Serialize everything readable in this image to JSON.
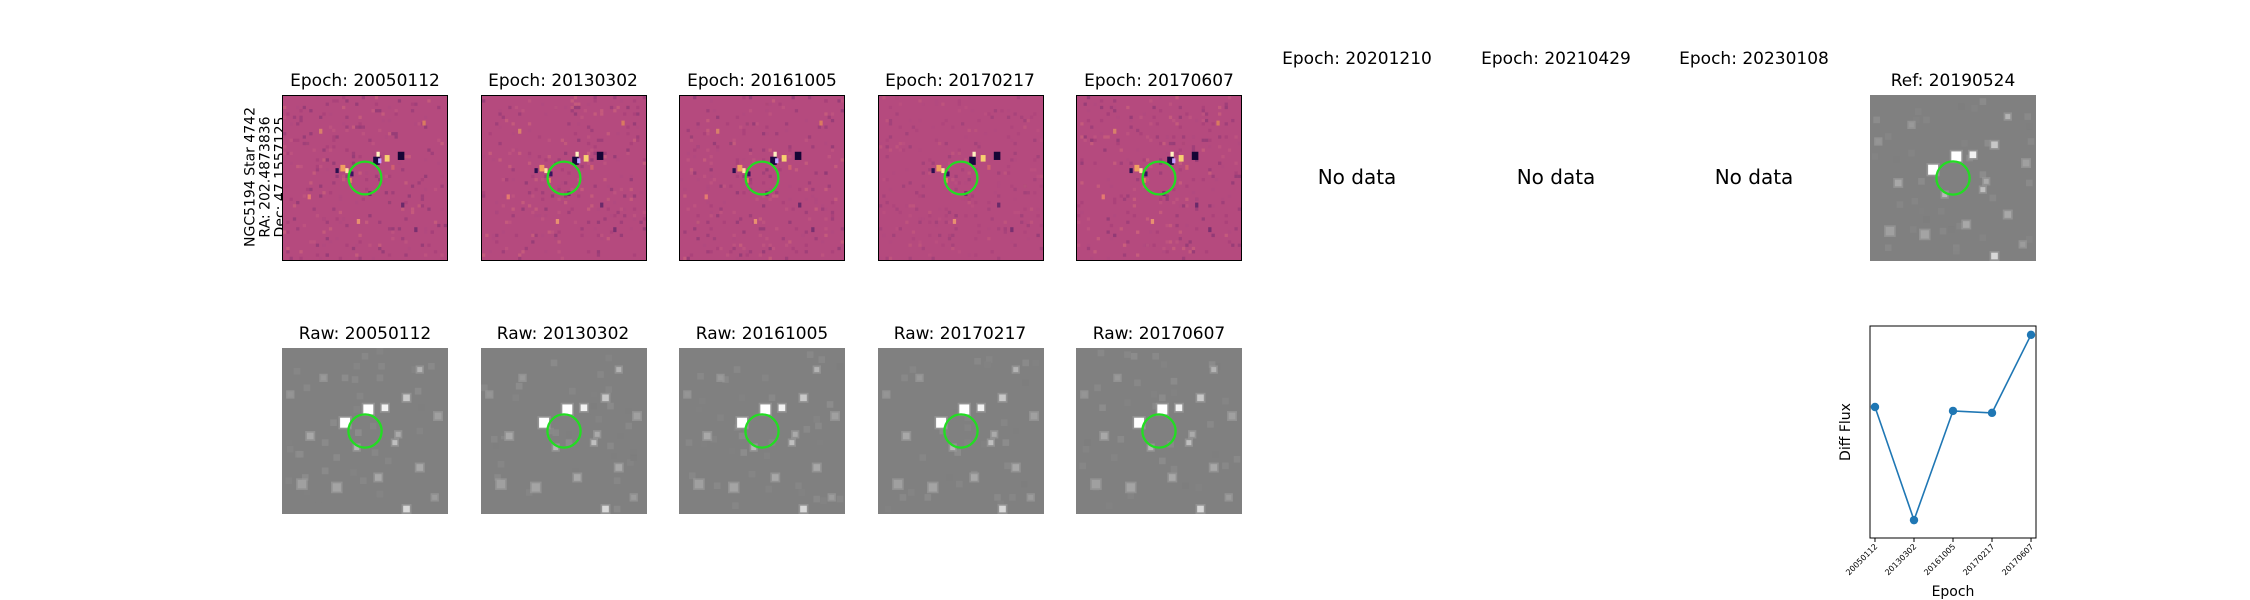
{
  "object_label": {
    "line1": "NGC5194 Star 4742",
    "line2": "RA: 202.4873836",
    "line3": "Dec: 47.1557125"
  },
  "diff_panels": [
    {
      "title": "Epoch: 20050112",
      "has_data": true
    },
    {
      "title": "Epoch: 20130302",
      "has_data": true
    },
    {
      "title": "Epoch: 20161005",
      "has_data": true
    },
    {
      "title": "Epoch: 20170217",
      "has_data": true
    },
    {
      "title": "Epoch: 20170607",
      "has_data": true
    },
    {
      "title": "Epoch: 20201210",
      "has_data": false
    },
    {
      "title": "Epoch: 20210429",
      "has_data": false
    },
    {
      "title": "Epoch: 20230108",
      "has_data": false
    }
  ],
  "no_data_text": "No data",
  "ref_panel": {
    "title": "Ref: 20190524"
  },
  "raw_panels": [
    {
      "title": "Raw: 20050112"
    },
    {
      "title": "Raw: 20130302"
    },
    {
      "title": "Raw: 20161005"
    },
    {
      "title": "Raw: 20170217"
    },
    {
      "title": "Raw: 20170607"
    }
  ],
  "colors": {
    "diff_background": "#b54a7e",
    "raw_background": "#808080",
    "aperture_circle": "#22dd22",
    "series_line": "#1f77b4"
  },
  "chart_data": {
    "type": "line",
    "xlabel": "Epoch",
    "ylabel": "Diff Flux",
    "x": [
      "20050112",
      "20130302",
      "20161005",
      "20170217",
      "20170607"
    ],
    "series": [
      {
        "values": [
          0.63,
          0.05,
          0.61,
          0.6,
          1.0
        ]
      }
    ],
    "y_ticks_shown": false,
    "grid": false,
    "markers": "circle"
  }
}
